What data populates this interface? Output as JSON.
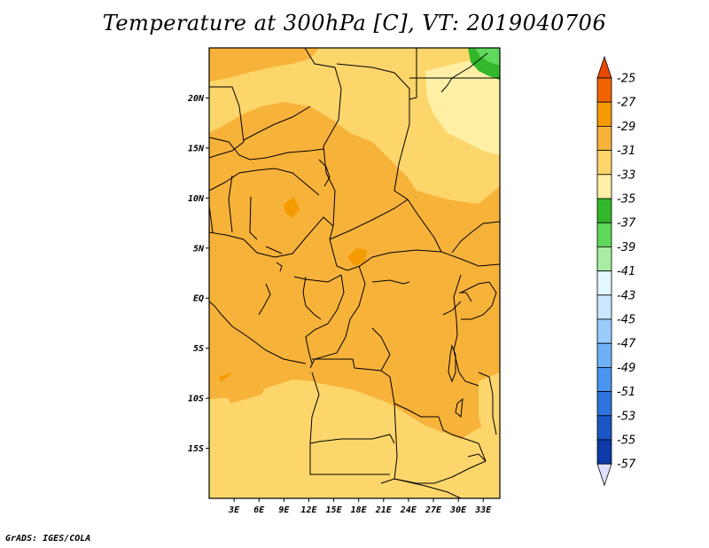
{
  "map": {
    "title": "Temperature at 300hPa [C], VT: 2019040706",
    "footer": "GrADS: IGES/COLA",
    "lat_ticks": [
      "20N",
      "15N",
      "10N",
      "5N",
      "EQ",
      "5S",
      "10S",
      "15S"
    ],
    "lat_values": [
      20,
      15,
      10,
      5,
      0,
      -5,
      -10,
      -15
    ],
    "lon_ticks": [
      "3E",
      "6E",
      "9E",
      "12E",
      "15E",
      "18E",
      "21E",
      "24E",
      "27E",
      "30E",
      "33E"
    ],
    "lon_values": [
      3,
      6,
      9,
      12,
      15,
      18,
      21,
      24,
      27,
      30,
      33
    ],
    "extent": {
      "lon": [
        0,
        35
      ],
      "lat": [
        -20,
        25
      ]
    }
  },
  "colorbar": {
    "labels": [
      "-25",
      "-27",
      "-29",
      "-31",
      "-33",
      "-35",
      "-37",
      "-39",
      "-41",
      "-43",
      "-45",
      "-47",
      "-49",
      "-51",
      "-53",
      "-55",
      "-57"
    ],
    "colors": [
      "#e84a00",
      "#f06400",
      "#f59b00",
      "#f7b23a",
      "#fcd66b",
      "#fff0a6",
      "#33b72b",
      "#60d85b",
      "#a8eda2",
      "#e3f7ff",
      "#cbe7ff",
      "#99ccff",
      "#6fb1f7",
      "#4a93ef",
      "#2f73dc",
      "#1b56c4",
      "#0d3aa8",
      "#07137a",
      "#e0e0ff"
    ]
  }
}
